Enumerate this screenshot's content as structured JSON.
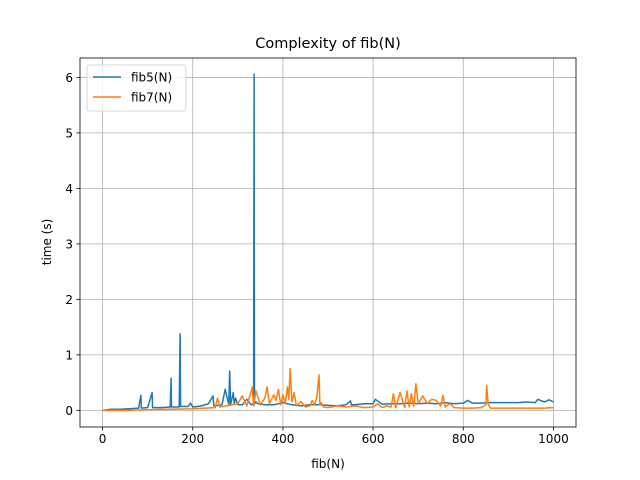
{
  "chart_data": {
    "type": "line",
    "title": "Complexity of fib(N)",
    "xlabel": "fib(N)",
    "ylabel": "time (s)",
    "xlim": [
      -50,
      1050
    ],
    "ylim": [
      -0.3,
      6.35
    ],
    "x_ticks": [
      0,
      200,
      400,
      600,
      800,
      1000
    ],
    "y_ticks": [
      0,
      1,
      2,
      3,
      4,
      5,
      6
    ],
    "x_tick_labels": [
      "0",
      "200",
      "400",
      "600",
      "800",
      "1000"
    ],
    "y_tick_labels": [
      "0",
      "1",
      "2",
      "3",
      "4",
      "5",
      "6"
    ],
    "grid": true,
    "legend_position": "upper-left",
    "series": [
      {
        "name": "fib5(N)",
        "color": "#1f77b4",
        "x": [
          0,
          20,
          40,
          60,
          80,
          85,
          86,
          100,
          110,
          111,
          130,
          150,
          152,
          153,
          170,
          172,
          173,
          190,
          195,
          200,
          220,
          235,
          245,
          247,
          250,
          265,
          272,
          280,
          282,
          284,
          290,
          292,
          295,
          300,
          310,
          320,
          330,
          335,
          336,
          337,
          340,
          345,
          360,
          380,
          400,
          420,
          440,
          460,
          480,
          500,
          520,
          540,
          550,
          552,
          560,
          580,
          600,
          605,
          620,
          640,
          660,
          680,
          700,
          720,
          740,
          760,
          780,
          800,
          810,
          820,
          840,
          860,
          880,
          900,
          920,
          940,
          960,
          965,
          980,
          990,
          1000
        ],
        "y": [
          0.0,
          0.02,
          0.02,
          0.03,
          0.04,
          0.27,
          0.04,
          0.05,
          0.32,
          0.05,
          0.05,
          0.06,
          0.58,
          0.06,
          0.06,
          1.38,
          0.07,
          0.07,
          0.13,
          0.06,
          0.08,
          0.12,
          0.26,
          0.08,
          0.08,
          0.1,
          0.38,
          0.1,
          0.71,
          0.1,
          0.32,
          0.12,
          0.22,
          0.1,
          0.1,
          0.2,
          0.1,
          0.12,
          6.06,
          0.12,
          0.15,
          0.12,
          0.1,
          0.1,
          0.14,
          0.1,
          0.08,
          0.1,
          0.1,
          0.09,
          0.08,
          0.1,
          0.17,
          0.1,
          0.1,
          0.12,
          0.12,
          0.2,
          0.11,
          0.12,
          0.12,
          0.13,
          0.12,
          0.13,
          0.12,
          0.14,
          0.12,
          0.13,
          0.18,
          0.13,
          0.13,
          0.14,
          0.14,
          0.14,
          0.14,
          0.15,
          0.14,
          0.2,
          0.15,
          0.19,
          0.15
        ]
      },
      {
        "name": "fib7(N)",
        "color": "#ff7f0e",
        "x": [
          0,
          50,
          100,
          150,
          200,
          250,
          255,
          260,
          300,
          310,
          320,
          330,
          332,
          335,
          340,
          350,
          360,
          365,
          370,
          380,
          385,
          390,
          395,
          400,
          405,
          410,
          413,
          416,
          420,
          425,
          430,
          440,
          450,
          460,
          465,
          470,
          475,
          480,
          482,
          485,
          490,
          500,
          520,
          540,
          560,
          580,
          600,
          610,
          620,
          630,
          640,
          645,
          650,
          660,
          670,
          675,
          680,
          685,
          690,
          695,
          700,
          710,
          720,
          730,
          740,
          750,
          755,
          760,
          770,
          780,
          800,
          820,
          840,
          850,
          852,
          855,
          860,
          880,
          900,
          920,
          940,
          960,
          980,
          1000
        ],
        "y": [
          0.0,
          0.0,
          0.01,
          0.02,
          0.03,
          0.05,
          0.22,
          0.06,
          0.12,
          0.26,
          0.08,
          0.35,
          0.42,
          0.08,
          0.35,
          0.1,
          0.22,
          0.42,
          0.12,
          0.28,
          0.18,
          0.38,
          0.1,
          0.28,
          0.12,
          0.42,
          0.2,
          0.75,
          0.15,
          0.32,
          0.08,
          0.16,
          0.06,
          0.08,
          0.18,
          0.1,
          0.22,
          0.64,
          0.1,
          0.14,
          0.06,
          0.05,
          0.08,
          0.06,
          0.08,
          0.05,
          0.06,
          0.12,
          0.05,
          0.08,
          0.06,
          0.3,
          0.05,
          0.32,
          0.05,
          0.35,
          0.06,
          0.3,
          0.07,
          0.48,
          0.12,
          0.26,
          0.12,
          0.2,
          0.18,
          0.08,
          0.27,
          0.06,
          0.12,
          0.05,
          0.04,
          0.04,
          0.05,
          0.1,
          0.45,
          0.12,
          0.04,
          0.04,
          0.04,
          0.04,
          0.04,
          0.04,
          0.04,
          0.05
        ]
      }
    ]
  }
}
